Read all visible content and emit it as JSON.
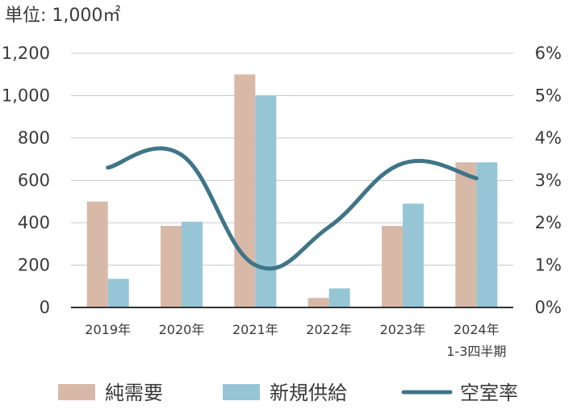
{
  "chart_data": {
    "type": "bar",
    "unit_label": "単位: 1,000㎡",
    "categories": [
      "2019年",
      "2020年",
      "2021年",
      "2022年",
      "2023年",
      "2024年"
    ],
    "category_sublabels": [
      "",
      "",
      "",
      "",
      "",
      "1-3四半期"
    ],
    "y_left": {
      "ylim": [
        0,
        1200
      ],
      "ticks": [
        "0",
        "200",
        "400",
        "600",
        "800",
        "1,000",
        "1,200"
      ]
    },
    "y_right": {
      "ylim": [
        0,
        6
      ],
      "ticks": [
        "0%",
        "1%",
        "2%",
        "3%",
        "4%",
        "5%",
        "6%"
      ]
    },
    "series": [
      {
        "name": "純需要",
        "type": "bar",
        "axis": "left",
        "color": "#d8b9a8",
        "values": [
          500,
          385,
          1100,
          45,
          385,
          685
        ]
      },
      {
        "name": "新規供給",
        "type": "bar",
        "axis": "left",
        "color": "#96c6d6",
        "values": [
          135,
          405,
          1000,
          90,
          490,
          685
        ]
      },
      {
        "name": "空室率",
        "type": "line",
        "axis": "right",
        "color": "#3f7587",
        "values": [
          3.3,
          3.6,
          1.0,
          1.9,
          3.4,
          3.05
        ]
      }
    ],
    "grid": true,
    "legend_position": "bottom"
  }
}
